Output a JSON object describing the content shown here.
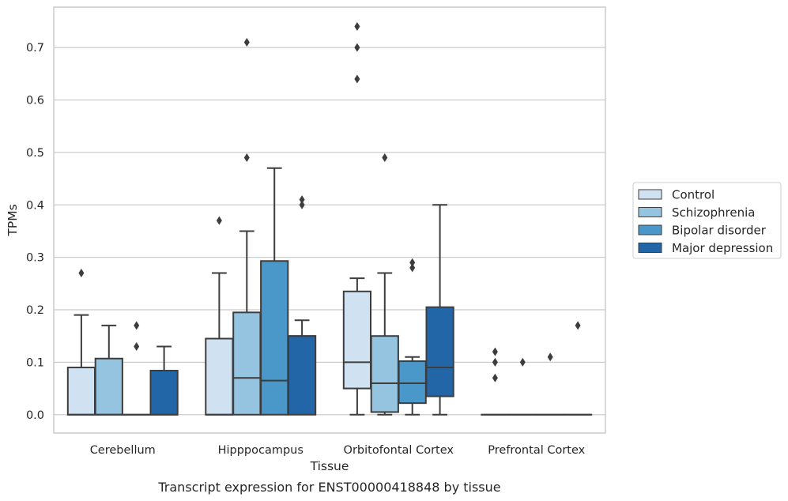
{
  "chart_data": {
    "type": "box",
    "xlabel": "Tissue",
    "ylabel": "TPMs",
    "caption": "Transcript expression for ENST00000418848 by tissue",
    "ylim": [
      -0.035,
      0.777
    ],
    "yticks": [
      0.0,
      0.1,
      0.2,
      0.3,
      0.4,
      0.5,
      0.6,
      0.7
    ],
    "ytick_labels": [
      "0.0",
      "0.1",
      "0.2",
      "0.3",
      "0.4",
      "0.5",
      "0.6",
      "0.7"
    ],
    "grid": "horizontal",
    "legend_position": "right",
    "categories": [
      "Cerebellum",
      "Hipppocampus",
      "Orbitofontal Cortex",
      "Prefrontal Cortex"
    ],
    "series": [
      {
        "name": "Control",
        "color": "#d0e1f2",
        "boxes": [
          {
            "q1": 0.0,
            "median": 0.0,
            "q3": 0.09,
            "whisker_low": 0.0,
            "whisker_high": 0.19,
            "outliers": [
              0.27
            ]
          },
          {
            "q1": 0.0,
            "median": 0.0,
            "q3": 0.145,
            "whisker_low": 0.0,
            "whisker_high": 0.27,
            "outliers": [
              0.37
            ]
          },
          {
            "q1": 0.05,
            "median": 0.1,
            "q3": 0.235,
            "whisker_low": 0.0,
            "whisker_high": 0.26,
            "outliers": [
              0.64,
              0.7,
              0.74
            ]
          },
          {
            "q1": 0.0,
            "median": 0.0,
            "q3": 0.0,
            "whisker_low": 0.0,
            "whisker_high": 0.0,
            "outliers": [
              0.07,
              0.1,
              0.12
            ]
          }
        ]
      },
      {
        "name": "Schizophrenia",
        "color": "#94c4df",
        "boxes": [
          {
            "q1": 0.0,
            "median": 0.0,
            "q3": 0.107,
            "whisker_low": 0.0,
            "whisker_high": 0.17,
            "outliers": []
          },
          {
            "q1": 0.0,
            "median": 0.07,
            "q3": 0.195,
            "whisker_low": 0.0,
            "whisker_high": 0.35,
            "outliers": [
              0.49,
              0.71
            ]
          },
          {
            "q1": 0.005,
            "median": 0.06,
            "q3": 0.15,
            "whisker_low": 0.0,
            "whisker_high": 0.27,
            "outliers": [
              0.49
            ]
          },
          {
            "q1": 0.0,
            "median": 0.0,
            "q3": 0.0,
            "whisker_low": 0.0,
            "whisker_high": 0.0,
            "outliers": [
              0.1
            ]
          }
        ]
      },
      {
        "name": "Bipolar disorder",
        "color": "#4a98c9",
        "boxes": [
          {
            "q1": 0.0,
            "median": 0.0,
            "q3": 0.0,
            "whisker_low": 0.0,
            "whisker_high": 0.0,
            "outliers": [
              0.13,
              0.17
            ]
          },
          {
            "q1": 0.0,
            "median": 0.065,
            "q3": 0.293,
            "whisker_low": 0.0,
            "whisker_high": 0.47,
            "outliers": []
          },
          {
            "q1": 0.022,
            "median": 0.06,
            "q3": 0.102,
            "whisker_low": 0.0,
            "whisker_high": 0.11,
            "outliers": [
              0.28,
              0.29
            ]
          },
          {
            "q1": 0.0,
            "median": 0.0,
            "q3": 0.0,
            "whisker_low": 0.0,
            "whisker_high": 0.0,
            "outliers": [
              0.11
            ]
          }
        ]
      },
      {
        "name": "Major depression",
        "color": "#2366a8",
        "boxes": [
          {
            "q1": 0.0,
            "median": 0.0,
            "q3": 0.084,
            "whisker_low": 0.0,
            "whisker_high": 0.13,
            "outliers": []
          },
          {
            "q1": 0.0,
            "median": 0.15,
            "q3": 0.15,
            "whisker_low": 0.0,
            "whisker_high": 0.18,
            "outliers": [
              0.4,
              0.41
            ]
          },
          {
            "q1": 0.035,
            "median": 0.09,
            "q3": 0.205,
            "whisker_low": 0.0,
            "whisker_high": 0.4,
            "outliers": []
          },
          {
            "q1": 0.0,
            "median": 0.0,
            "q3": 0.0,
            "whisker_low": 0.0,
            "whisker_high": 0.0,
            "outliers": [
              0.17
            ]
          }
        ]
      }
    ]
  }
}
